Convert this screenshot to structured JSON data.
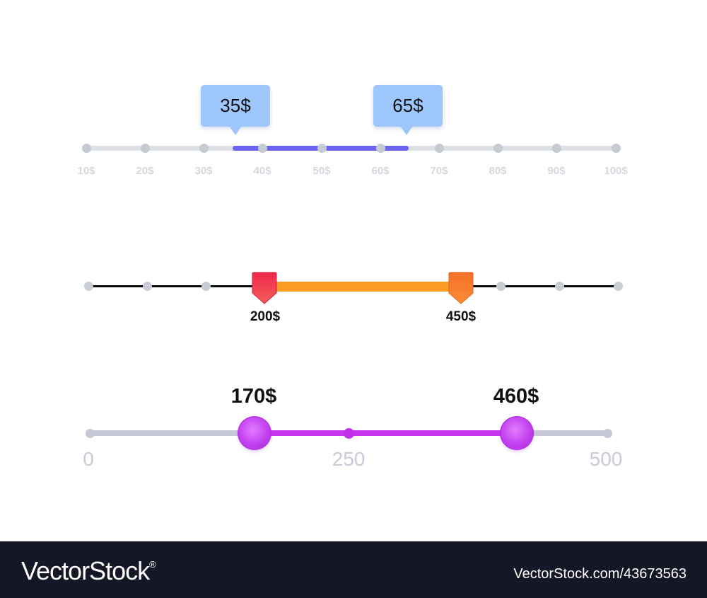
{
  "slider1": {
    "labels": [
      "10$",
      "20$",
      "30$",
      "40$",
      "50$",
      "60$",
      "70$",
      "80$",
      "90$",
      "100$"
    ],
    "min_value": "35$",
    "max_value": "65$",
    "colors": {
      "fill": "#6a63f4",
      "tooltip": "#9dc6fb",
      "track": "#dde0e5"
    }
  },
  "slider2": {
    "min_value": "200$",
    "max_value": "450$",
    "colors": {
      "fill": "#fb9a25",
      "handle_min": "#ee3248",
      "handle_max": "#f86d2a"
    }
  },
  "slider3": {
    "min_value": "170$",
    "max_value": "460$",
    "scale": {
      "start": "0",
      "mid": "250",
      "end": "500"
    },
    "colors": {
      "fill": "#c636ee",
      "track": "#c6c8d8"
    }
  },
  "footer": {
    "brand": "VectorStock",
    "brand_mark": "®",
    "image_id": "VectorStock.com/43673563"
  }
}
